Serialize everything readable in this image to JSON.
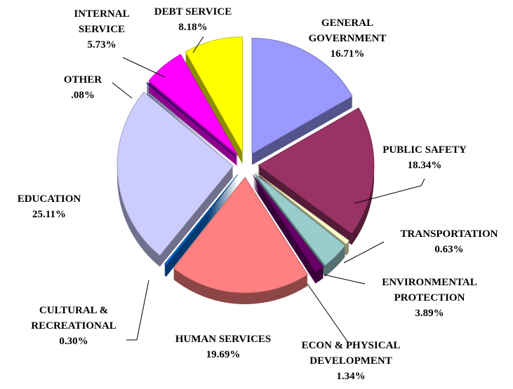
{
  "chart_data": {
    "type": "pie",
    "categories": [
      "GENERAL GOVERNMENT",
      "PUBLIC SAFETY",
      "TRANSPORTATION",
      "ENVIRONMENTAL PROTECTION",
      "ECON & PHYSICAL DEVELOPMENT",
      "HUMAN SERVICES",
      "CULTURAL & RECREATIONAL",
      "EDUCATION",
      "OTHER",
      "INTERNAL SERVICE",
      "DEBT SERVICE"
    ],
    "values": [
      16.71,
      18.34,
      0.63,
      3.89,
      1.34,
      19.69,
      0.3,
      25.11,
      0.08,
      5.73,
      8.18
    ],
    "value_labels": [
      "16.71%",
      "18.34%",
      "0.63%",
      "3.89%",
      "1.34%",
      "19.69%",
      "0.30%",
      "25.11%",
      ".08%",
      "5.73%",
      "8.18%"
    ],
    "colors": [
      "#9999ff",
      "#993366",
      "#ffffcc",
      "#99cccc",
      "#660066",
      "#ff8080",
      "#0066cc",
      "#ccccff",
      "#000080",
      "#ff00ff",
      "#ffff00"
    ]
  }
}
